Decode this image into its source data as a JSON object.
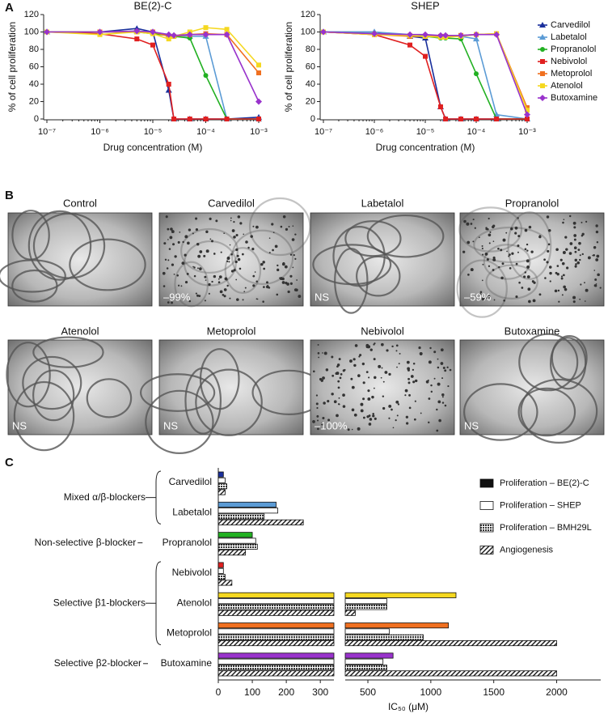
{
  "panel_labels": [
    "A",
    "B",
    "C"
  ],
  "chart_data": [
    {
      "type": "line",
      "title": "BE(2)-C",
      "xlabel": "Drug concentration (M)",
      "ylabel": "% of cell proliferation",
      "xscale": "log",
      "x": [
        1e-07,
        1e-06,
        5e-06,
        1e-05,
        2e-05,
        2.5e-05,
        5e-05,
        0.0001,
        0.00025,
        0.001
      ],
      "xlim": [
        1e-07,
        0.001
      ],
      "xticks": [
        {
          "value": 1e-07,
          "label": "10⁻⁷"
        },
        {
          "value": 1e-06,
          "label": "10⁻⁶"
        },
        {
          "value": 1e-05,
          "label": "10⁻⁵"
        },
        {
          "value": 0.0001,
          "label": "10⁻⁴"
        },
        {
          "value": 0.001,
          "label": "10⁻³"
        }
      ],
      "ylim": [
        0,
        120
      ],
      "yticks": [
        0,
        20,
        40,
        60,
        80,
        100,
        120
      ],
      "series": [
        {
          "color": "#1a2f9c",
          "marker": "triangle",
          "values": [
            100,
            100,
            104,
            100,
            33,
            0,
            0,
            0,
            0,
            2
          ]
        },
        {
          "color": "#5b9bd5",
          "marker": "triangle",
          "values": [
            100,
            100,
            101,
            100,
            97,
            96,
            95,
            95,
            0,
            0
          ]
        },
        {
          "color": "#22b022",
          "marker": "circle",
          "values": [
            100,
            100,
            100,
            98,
            96,
            95,
            93,
            50,
            0,
            0
          ]
        },
        {
          "color": "#e02020",
          "marker": "square",
          "values": [
            100,
            98,
            92,
            85,
            40,
            0,
            0,
            0,
            0,
            0
          ]
        },
        {
          "color": "#f07020",
          "marker": "square",
          "values": [
            100,
            100,
            100,
            100,
            95,
            95,
            97,
            98,
            97,
            53
          ]
        },
        {
          "color": "#f5d820",
          "marker": "square",
          "values": [
            100,
            97,
            100,
            98,
            92,
            95,
            100,
            105,
            103,
            62
          ]
        },
        {
          "color": "#9933cc",
          "marker": "diamond",
          "values": [
            100,
            100,
            101,
            100,
            97,
            96,
            97,
            97,
            97,
            20
          ]
        }
      ]
    },
    {
      "type": "line",
      "title": "SHEP",
      "xlabel": "Drug concentration (M)",
      "ylabel": "% of cell proliferation",
      "xscale": "log",
      "legend": "right",
      "x": [
        1e-07,
        1e-06,
        5e-06,
        1e-05,
        2e-05,
        2.5e-05,
        5e-05,
        0.0001,
        0.00025,
        0.001
      ],
      "xlim": [
        1e-07,
        0.001
      ],
      "xticks": [
        {
          "value": 1e-07,
          "label": "10⁻⁷"
        },
        {
          "value": 1e-06,
          "label": "10⁻⁶"
        },
        {
          "value": 1e-05,
          "label": "10⁻⁵"
        },
        {
          "value": 0.0001,
          "label": "10⁻⁴"
        },
        {
          "value": 0.001,
          "label": "10⁻³"
        }
      ],
      "ylim": [
        0,
        120
      ],
      "yticks": [
        0,
        20,
        40,
        60,
        80,
        100,
        120
      ],
      "series": [
        {
          "name": "Carvedilol",
          "color": "#1a2f9c",
          "marker": "triangle",
          "values": [
            100,
            100,
            95,
            93,
            14,
            0,
            0,
            0,
            0,
            0
          ]
        },
        {
          "name": "Labetalol",
          "color": "#5b9bd5",
          "marker": "triangle",
          "values": [
            100,
            100,
            97,
            96,
            96,
            96,
            95,
            92,
            5,
            0
          ]
        },
        {
          "name": "Propranolol",
          "color": "#22b022",
          "marker": "circle",
          "values": [
            100,
            98,
            96,
            95,
            93,
            93,
            92,
            52,
            0,
            0
          ]
        },
        {
          "name": "Nebivolol",
          "color": "#e02020",
          "marker": "square",
          "values": [
            100,
            97,
            85,
            72,
            14,
            0,
            0,
            0,
            0,
            0
          ]
        },
        {
          "name": "Metoprolol",
          "color": "#f07020",
          "marker": "square",
          "values": [
            100,
            97,
            95,
            95,
            95,
            95,
            96,
            97,
            98,
            13
          ]
        },
        {
          "name": "Atenolol",
          "color": "#f5d820",
          "marker": "square",
          "values": [
            100,
            97,
            96,
            95,
            94,
            94,
            95,
            97,
            98,
            10
          ]
        },
        {
          "name": "Butoxamine",
          "color": "#9933cc",
          "marker": "diamond",
          "values": [
            100,
            98,
            97,
            97,
            96,
            96,
            96,
            97,
            97,
            5
          ]
        }
      ]
    },
    {
      "type": "hbar",
      "xlabel": "IC₅₀ (μM)",
      "categories": [
        "Carvedilol",
        "Labetalol",
        "Propranolol",
        "Nebivolol",
        "Atenolol",
        "Metoprolol",
        "Butoxamine"
      ],
      "groups": [
        {
          "label": "Mixed α/β-blockers",
          "size": 2
        },
        {
          "label": "Non-selective β-blocker",
          "size": 1
        },
        {
          "label": "Selective β1-blockers",
          "size": 3
        },
        {
          "label": "Selective β2-blocker",
          "size": 1
        }
      ],
      "xlim_segments": [
        [
          0,
          340
        ],
        [
          320,
          2350
        ]
      ],
      "xticks": [
        0,
        100,
        200,
        300,
        500,
        1000,
        1500,
        2000
      ],
      "series": [
        {
          "name": "Proliferation – BE(2)-C",
          "fill": "solid",
          "colors": [
            "#1a2f9c",
            "#5b9bd5",
            "#22b022",
            "#e02020",
            "#f5d820",
            "#f07020",
            "#9933cc"
          ],
          "values": [
            15,
            170,
            100,
            15,
            1200,
            1140,
            700
          ]
        },
        {
          "name": "Proliferation – SHEP",
          "fill": "none",
          "values": [
            20,
            175,
            110,
            15,
            650,
            670,
            620
          ]
        },
        {
          "name": "Proliferation – BMH29L",
          "fill": "crosshatch",
          "values": [
            25,
            135,
            115,
            20,
            650,
            940,
            650
          ]
        },
        {
          "name": "Angiogenesis",
          "fill": "diagonal",
          "values": [
            20,
            250,
            80,
            40,
            400,
            2000,
            2000
          ]
        }
      ]
    }
  ],
  "images": [
    {
      "title": "Control"
    },
    {
      "title": "Carvedilol",
      "annotation": "–99%"
    },
    {
      "title": "Labetalol",
      "annotation": "NS"
    },
    {
      "title": "Propranolol",
      "annotation": "–59%"
    },
    {
      "title": "Atenolol",
      "annotation": "NS"
    },
    {
      "title": "Metoprolol",
      "annotation": "NS"
    },
    {
      "title": "Nebivolol",
      "annotation": "–100%"
    },
    {
      "title": "Butoxamine",
      "annotation": "NS"
    }
  ]
}
